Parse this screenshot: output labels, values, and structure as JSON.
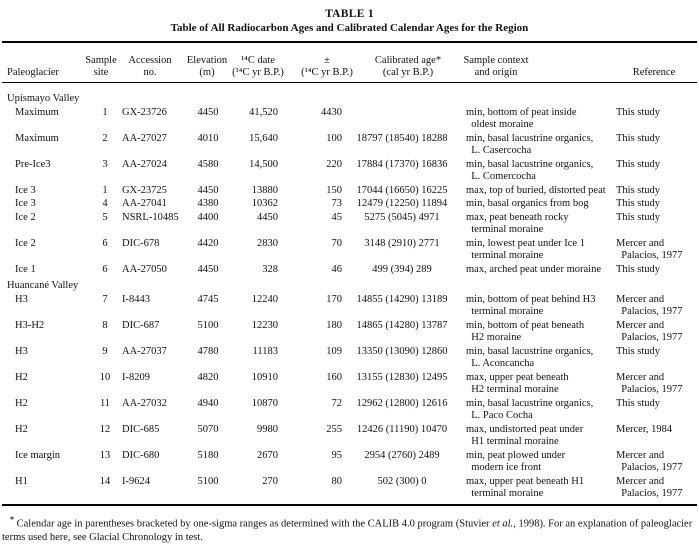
{
  "title": {
    "label": "TABLE 1",
    "caption": "Table of All Radiocarbon Ages and Calibrated Calendar Ages for the Region"
  },
  "table": {
    "columns": [
      {
        "key": "paleoglacier",
        "header": "Paleoglacier"
      },
      {
        "key": "sample_site",
        "header": "Sample\nsite"
      },
      {
        "key": "accession_no",
        "header": "Accession\nno."
      },
      {
        "key": "elevation_m",
        "header": "Elevation\n(m)"
      },
      {
        "key": "c14_date",
        "header": "¹⁴C date\n(¹⁴C yr B.P.)"
      },
      {
        "key": "plus_minus",
        "header": "±\n(¹⁴C yr B.P.)"
      },
      {
        "key": "calibrated_age",
        "header": "Calibrated age*\n(cal yr B.P.)"
      },
      {
        "key": "sample_context",
        "header": "Sample context\nand origin"
      },
      {
        "key": "reference",
        "header": "Reference"
      }
    ],
    "sections": [
      {
        "name": "Upismayo Valley",
        "rows": [
          {
            "paleoglacier": "Maximum",
            "sample_site": "1",
            "accession_no": "GX-23726",
            "elevation_m": "4450",
            "c14_date": "41,520",
            "plus_minus": "4430",
            "calibrated_age": "",
            "sample_context": "min, bottom of peat inside\n  oldest moraine",
            "reference": "This study"
          },
          {
            "paleoglacier": "Maximum",
            "sample_site": "2",
            "accession_no": "AA-27027",
            "elevation_m": "4010",
            "c14_date": "15,640",
            "plus_minus": "100",
            "calibrated_age": "18797 (18540) 18288",
            "sample_context": "min, basal lacustrine organics,\n  L. Casercocha",
            "reference": "This study"
          },
          {
            "paleoglacier": "Pre-Ice3",
            "sample_site": "3",
            "accession_no": "AA-27024",
            "elevation_m": "4580",
            "c14_date": "14,500",
            "plus_minus": "220",
            "calibrated_age": "17884 (17370) 16836",
            "sample_context": "min, basal lacustrine organics,\n  L. Comercocha",
            "reference": "This study"
          },
          {
            "paleoglacier": "Ice 3",
            "sample_site": "1",
            "accession_no": "GX-23725",
            "elevation_m": "4450",
            "c14_date": "13880",
            "plus_minus": "150",
            "calibrated_age": "17044 (16650) 16225",
            "sample_context": "max, top of buried, distorted peat",
            "reference": "This study"
          },
          {
            "paleoglacier": "Ice 3",
            "sample_site": "4",
            "accession_no": "AA-27041",
            "elevation_m": "4380",
            "c14_date": "10362",
            "plus_minus": "73",
            "calibrated_age": "12479 (12250) 11894",
            "sample_context": "min, basal organics from bog",
            "reference": "This study"
          },
          {
            "paleoglacier": "Ice 2",
            "sample_site": "5",
            "accession_no": "NSRL-10485",
            "elevation_m": "4400",
            "c14_date": "4450",
            "plus_minus": "45",
            "calibrated_age": "5275 (5045) 4971",
            "sample_context": "max, peat beneath rocky\n  terminal moraine",
            "reference": "This study"
          },
          {
            "paleoglacier": "Ice 2",
            "sample_site": "6",
            "accession_no": "DIC-678",
            "elevation_m": "4420",
            "c14_date": "2830",
            "plus_minus": "70",
            "calibrated_age": "3148 (2910) 2771",
            "sample_context": "min, lowest peat under Ice 1\n  terminal moraine",
            "reference": "Mercer and\n  Palacios, 1977"
          },
          {
            "paleoglacier": "Ice 1",
            "sample_site": "6",
            "accession_no": "AA-27050",
            "elevation_m": "4450",
            "c14_date": "328",
            "plus_minus": "46",
            "calibrated_age": "499 (394) 289",
            "sample_context": "max, arched peat under moraine",
            "reference": "This study"
          }
        ]
      },
      {
        "name": "Huancané Valley",
        "rows": [
          {
            "paleoglacier": "H3",
            "sample_site": "7",
            "accession_no": "I-8443",
            "elevation_m": "4745",
            "c14_date": "12240",
            "plus_minus": "170",
            "calibrated_age": "14855 (14290) 13189",
            "sample_context": "min, bottom of peat behind H3\n  terminal moraine",
            "reference": "Mercer and\n  Palacios, 1977"
          },
          {
            "paleoglacier": "H3-H2",
            "sample_site": "8",
            "accession_no": "DIC-687",
            "elevation_m": "5100",
            "c14_date": "12230",
            "plus_minus": "180",
            "calibrated_age": "14865 (14280) 13787",
            "sample_context": "min, bottom of peat beneath\n  H2 moraine",
            "reference": "Mercer and\n  Palacios, 1977"
          },
          {
            "paleoglacier": "H3",
            "sample_site": "9",
            "accession_no": "AA-27037",
            "elevation_m": "4780",
            "c14_date": "11183",
            "plus_minus": "109",
            "calibrated_age": "13350 (13090) 12860",
            "sample_context": "min, basal lacustrine organics,\n  L. Aconcancha",
            "reference": "This study"
          },
          {
            "paleoglacier": "H2",
            "sample_site": "10",
            "accession_no": "I-8209",
            "elevation_m": "4820",
            "c14_date": "10910",
            "plus_minus": "160",
            "calibrated_age": "13155 (12830) 12495",
            "sample_context": "max, upper peat beneath\n  H2 terminal moraine",
            "reference": "Mercer and\n  Palacios, 1977"
          },
          {
            "paleoglacier": "H2",
            "sample_site": "11",
            "accession_no": "AA-27032",
            "elevation_m": "4940",
            "c14_date": "10870",
            "plus_minus": "72",
            "calibrated_age": "12962 (12800) 12616",
            "sample_context": "min, basal lacustrine organics,\n  L. Paco Cocha",
            "reference": "This study"
          },
          {
            "paleoglacier": "H2",
            "sample_site": "12",
            "accession_no": "DIC-685",
            "elevation_m": "5070",
            "c14_date": "9980",
            "plus_minus": "255",
            "calibrated_age": "12426 (11190) 10470",
            "sample_context": "max, undistorted peat under\n  H1 terminal moraine",
            "reference": "Mercer, 1984"
          },
          {
            "paleoglacier": "Ice margin",
            "sample_site": "13",
            "accession_no": "DIC-680",
            "elevation_m": "5180",
            "c14_date": "2670",
            "plus_minus": "95",
            "calibrated_age": "2954 (2760) 2489",
            "sample_context": "min, peat plowed under\n  modern ice front",
            "reference": "Mercer and\n  Palacios, 1977"
          },
          {
            "paleoglacier": "H1",
            "sample_site": "14",
            "accession_no": "I-9624",
            "elevation_m": "5100",
            "c14_date": "270",
            "plus_minus": "80",
            "calibrated_age": "502 (300) 0",
            "sample_context": "max, upper peat beneath H1\n  terminal moraine",
            "reference": "Mercer and\n  Palacios, 1977"
          }
        ]
      }
    ]
  },
  "footnote": {
    "marker": "*",
    "part1": " Calendar age in parentheses bracketed by one-sigma ranges as determined with the CALIB 4.0 program (Stuvier ",
    "etal": "et al.",
    "part2": ", 1998). For an explanation of paleoglacier terms used here, see Glacial Chronology in test."
  }
}
